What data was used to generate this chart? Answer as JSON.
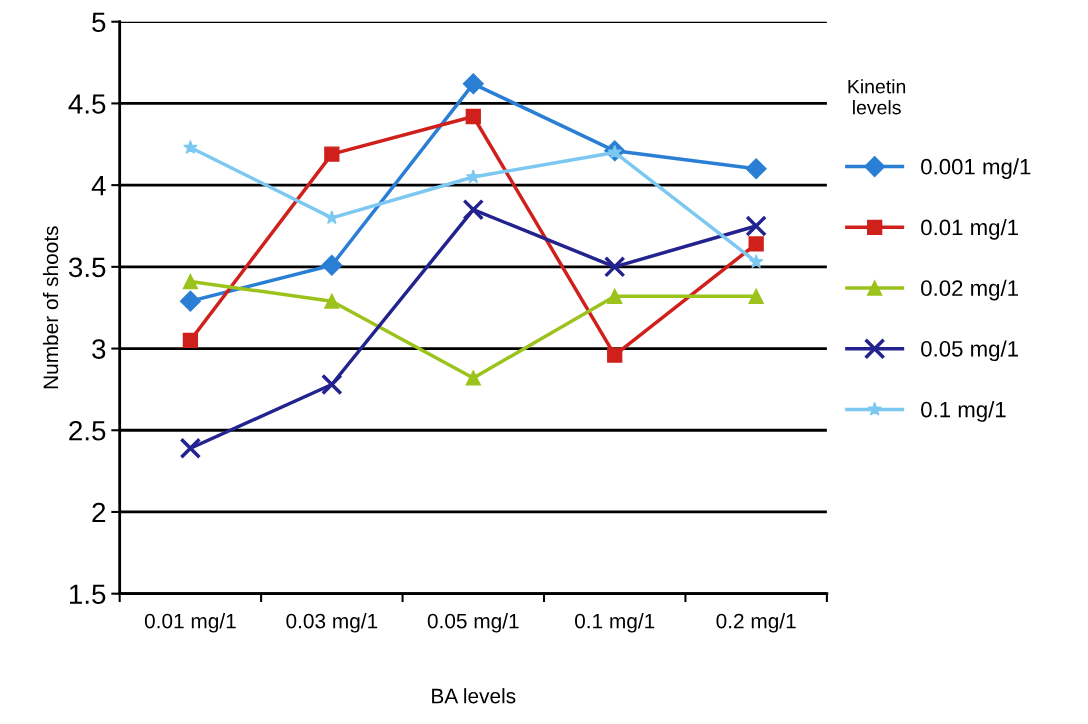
{
  "chart_data": {
    "type": "line",
    "xlabel": "BA levels",
    "ylabel": "Number of shoots",
    "legend_title": "Kinetin\nlevels",
    "categories": [
      "0.01 mg/1",
      "0.03 mg/1",
      "0.05 mg/1",
      "0.1 mg/1",
      "0.2 mg/1"
    ],
    "series": [
      {
        "name": "0.001 mg/1",
        "color": "#2a7fd4",
        "marker": "diamond",
        "values": [
          3.29,
          3.51,
          4.62,
          4.21,
          4.1
        ]
      },
      {
        "name": "0.01 mg/1",
        "color": "#d0201c",
        "marker": "square",
        "values": [
          3.05,
          4.19,
          4.42,
          2.96,
          3.64
        ]
      },
      {
        "name": "0.02 mg/1",
        "color": "#9cc21c",
        "marker": "triangle",
        "values": [
          3.41,
          3.29,
          2.82,
          3.32,
          3.32
        ]
      },
      {
        "name": "0.05 mg/1",
        "color": "#23238f",
        "marker": "cross",
        "values": [
          2.39,
          2.78,
          3.85,
          3.5,
          3.75
        ]
      },
      {
        "name": "0.1 mg/1",
        "color": "#7cc8f0",
        "marker": "star",
        "values": [
          4.23,
          3.8,
          4.05,
          4.2,
          3.53
        ]
      }
    ],
    "ylim": [
      1.5,
      5
    ],
    "yticks": [
      1.5,
      2,
      2.5,
      3,
      3.5,
      4,
      4.5,
      5
    ],
    "grid": "y",
    "legend": "right",
    "line_style": "solid"
  }
}
